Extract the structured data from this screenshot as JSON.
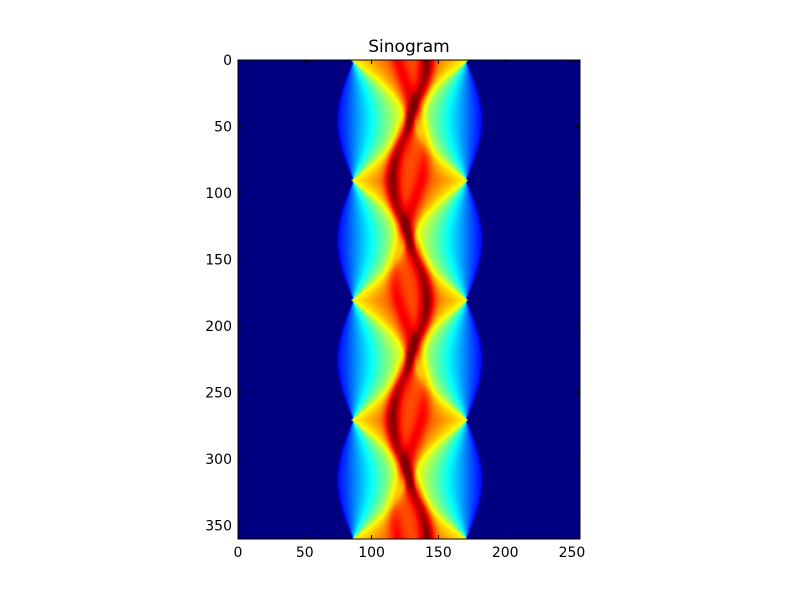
{
  "chart_data": {
    "type": "heatmap",
    "title": "Sinogram",
    "xlabel": "",
    "ylabel": "",
    "xlim": [
      0,
      256
    ],
    "ylim": [
      360,
      0
    ],
    "y_axis_inverted": true,
    "x_ticks": [
      0,
      50,
      100,
      150,
      200,
      250
    ],
    "y_ticks": [
      0,
      50,
      100,
      150,
      200,
      250,
      300,
      350
    ],
    "colormap": "jet",
    "grid": false,
    "legend": "none",
    "background_value_color": "#00007f",
    "description": "",
    "band": {
      "center": 128,
      "half_width": 43,
      "period_in_y": 90,
      "outer_lobe_max_extra_half_width": 12
    },
    "bright_trace": {
      "x_values_at_y": [
        {
          "y": 0,
          "x": 133
        },
        {
          "y": 45,
          "x": 135
        },
        {
          "y": 90,
          "x": 141
        },
        {
          "y": 135,
          "x": 137
        },
        {
          "y": 180,
          "x": 128
        },
        {
          "y": 225,
          "x": 119
        },
        {
          "y": 270,
          "x": 115
        },
        {
          "y": 315,
          "x": 121
        },
        {
          "y": 360,
          "x": 133
        }
      ],
      "amplitude": 13,
      "phase_degrees": 45
    }
  }
}
